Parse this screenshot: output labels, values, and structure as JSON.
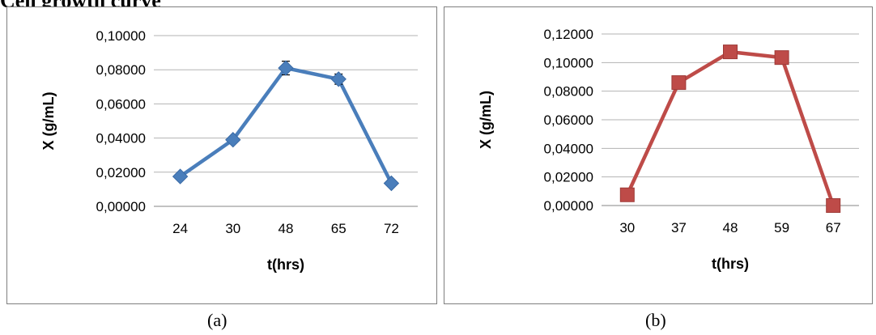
{
  "heading": "Cell growth curve",
  "chart_data": [
    {
      "type": "line",
      "caption": "(a)",
      "categories": [
        "24",
        "30",
        "48",
        "65",
        "72"
      ],
      "series": [
        {
          "values": [
            0.0175,
            0.039,
            0.081,
            0.0745,
            0.0135
          ],
          "error": [
            0.001,
            0.001,
            0.004,
            0.003,
            0.001
          ]
        }
      ],
      "xlabel": "t(hrs)",
      "ylabel": "X (g/mL)",
      "ylim": [
        0,
        0.1
      ],
      "yticks": [
        "0,00000",
        "0,02000",
        "0,04000",
        "0,06000",
        "0,08000",
        "0,10000"
      ],
      "marker": "diamond",
      "color": "#4a7ebb",
      "grid": true
    },
    {
      "type": "line",
      "caption": "(b)",
      "categories": [
        "30",
        "37",
        "48",
        "59",
        "67"
      ],
      "series": [
        {
          "values": [
            0.0075,
            0.086,
            0.1075,
            0.1035,
            0.0
          ]
        }
      ],
      "xlabel": "t(hrs)",
      "ylabel": "X (g/mL)",
      "ylim": [
        0,
        0.12
      ],
      "yticks": [
        "0,00000",
        "0,02000",
        "0,04000",
        "0,06000",
        "0,08000",
        "0,10000",
        "0,12000"
      ],
      "marker": "square",
      "color": "#be4b48",
      "grid": true
    }
  ]
}
